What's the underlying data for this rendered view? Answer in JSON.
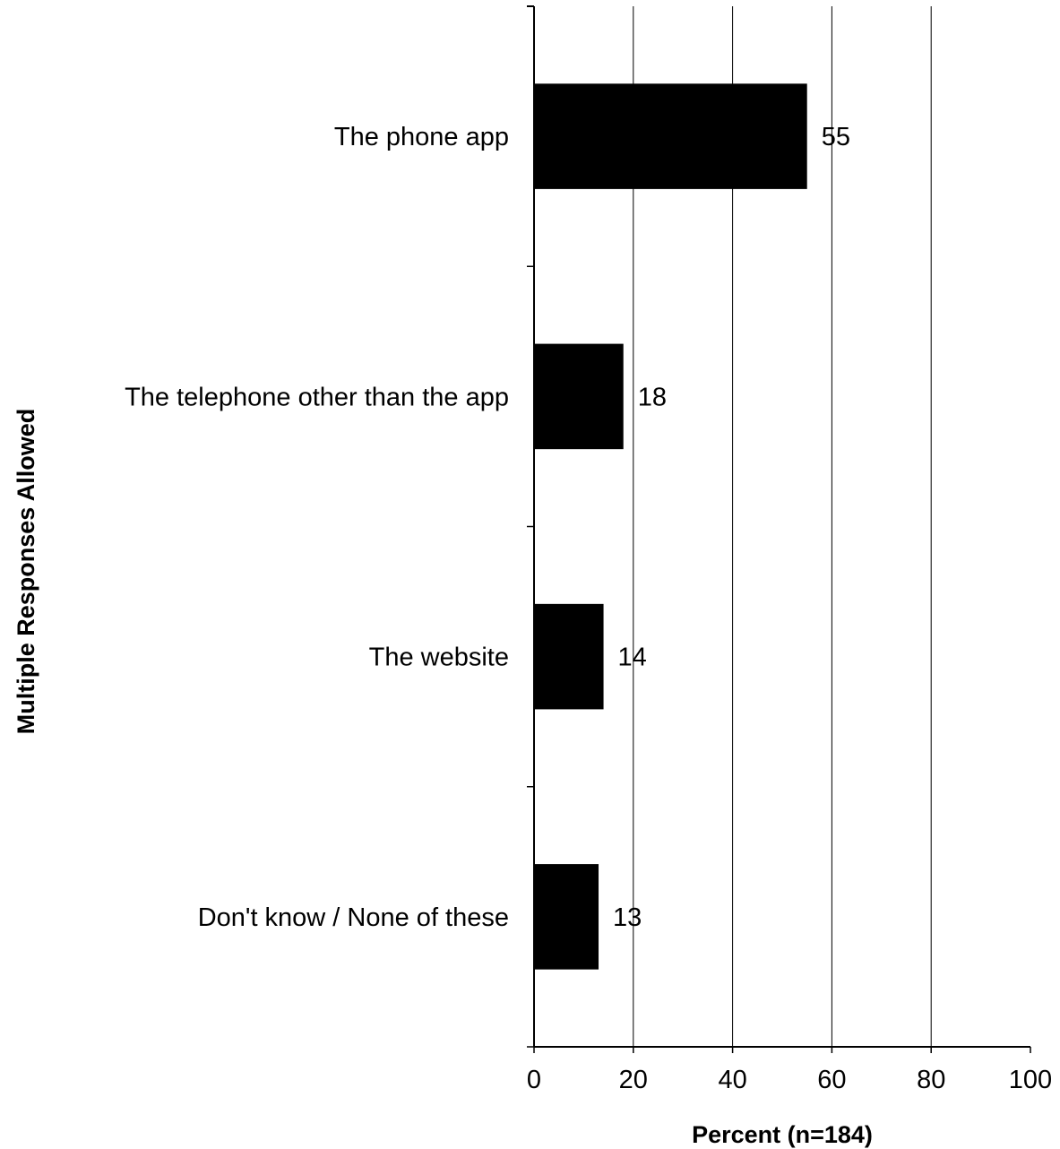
{
  "chart_data": {
    "type": "bar",
    "orientation": "horizontal",
    "categories": [
      "The phone app",
      "The telephone other than the app",
      "The website",
      "Don't know / None of these"
    ],
    "values": [
      55,
      18,
      14,
      13
    ],
    "value_labels": [
      "55",
      "18",
      "14",
      "13"
    ],
    "title": "",
    "xlabel": "Percent (n=184)",
    "ylabel": "Multiple Responses Allowed",
    "xlim": [
      0,
      100
    ],
    "xticks": [
      0,
      20,
      40,
      60,
      80,
      100
    ],
    "xtick_labels": [
      "0",
      "20",
      "40",
      "60",
      "80",
      "100"
    ],
    "grid": true,
    "legend": "none",
    "bar_color": "#000000"
  }
}
